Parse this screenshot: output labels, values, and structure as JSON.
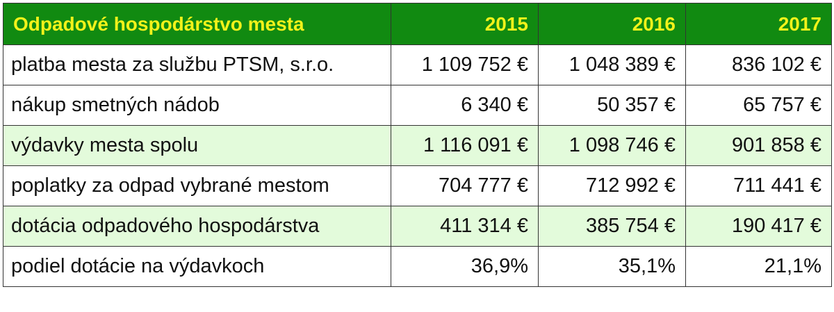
{
  "table": {
    "header": {
      "title": "Odpadové hospodárstvo mesta",
      "years": [
        "2015",
        "2016",
        "2017"
      ]
    },
    "rows": [
      {
        "label": "platba mesta za službu PTSM, s.r.o.",
        "values": [
          "1 109 752 €",
          "1 048 389 €",
          "836 102 €"
        ],
        "highlight": false
      },
      {
        "label": "nákup smetných nádob",
        "values": [
          "6 340 €",
          "50 357 €",
          "65 757 €"
        ],
        "highlight": false
      },
      {
        "label": "výdavky mesta spolu",
        "values": [
          "1 116 091 €",
          "1 098 746 €",
          "901 858 €"
        ],
        "highlight": true
      },
      {
        "label": "poplatky za odpad vybrané mestom",
        "values": [
          "704 777 €",
          "712 992 €",
          "711 441 €"
        ],
        "highlight": false
      },
      {
        "label": "dotácia odpadového hospodárstva",
        "values": [
          "411 314 €",
          "385 754 €",
          "190 417 €"
        ],
        "highlight": true
      },
      {
        "label": "podiel dotácie na výdavkoch",
        "values": [
          "36,9%",
          "35,1%",
          "21,1%"
        ],
        "highlight": false
      }
    ],
    "colors": {
      "header_bg": "#118a11",
      "header_text": "#f2f21a",
      "highlight_row_bg": "#e3fbdb",
      "border": "#333333"
    }
  }
}
